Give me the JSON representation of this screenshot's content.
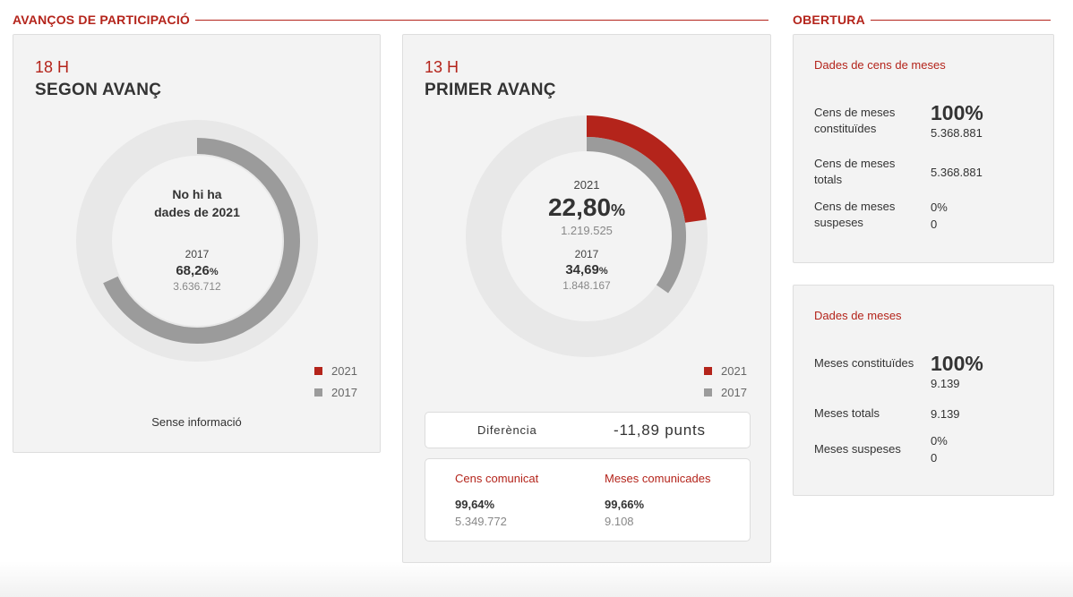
{
  "sections": {
    "participation_title": "AVANÇOS DE PARTICIPACIÓ",
    "opening_title": "OBERTURA"
  },
  "second": {
    "hour": "18 H",
    "title": "SEGON AVANÇ",
    "no_data_line1": "No hi ha",
    "no_data_line2": "dades de 2021",
    "prev_year": "2017",
    "prev_pct": "68,26",
    "prev_pct_unit": "%",
    "prev_count": "3.636.712",
    "prev_fraction": 0.6826,
    "legend_2021": "2021",
    "legend_2017": "2017",
    "no_info": "Sense informació"
  },
  "first": {
    "hour": "13 H",
    "title": "PRIMER AVANÇ",
    "year": "2021",
    "pct": "22,80",
    "pct_unit": "%",
    "count": "1.219.525",
    "fraction": 0.228,
    "prev_year": "2017",
    "prev_pct": "34,69",
    "prev_pct_unit": "%",
    "prev_count": "1.848.167",
    "prev_fraction": 0.3469,
    "legend_2021": "2021",
    "legend_2017": "2017",
    "diff_label": "Diferència",
    "diff_value": "-11,89 punts",
    "cens_title": "Cens comunicat",
    "cens_pct": "99,64%",
    "cens_value": "5.349.772",
    "meses_title": "Meses comunicades",
    "meses_pct": "99,66%",
    "meses_value": "9.108"
  },
  "opening_census": {
    "subtitle": "Dades de cens de meses",
    "row1_label": "Cens de meses constituïdes",
    "row1_pct": "100%",
    "row1_value": "5.368.881",
    "row2_label": "Cens de meses totals",
    "row2_value": "5.368.881",
    "row3_label": "Cens de meses suspeses",
    "row3_pct": "0%",
    "row3_value": "0"
  },
  "opening_tables": {
    "subtitle": "Dades de meses",
    "row1_label": "Meses constituïdes",
    "row1_pct": "100%",
    "row1_value": "9.139",
    "row2_label": "Meses totals",
    "row2_value": "9.139",
    "row3_label": "Meses suspeses",
    "row3_pct": "0%",
    "row3_value": "0"
  },
  "colors": {
    "accent": "#b4241b",
    "series_2017": "#9b9b9b",
    "track": "#e8e8e8"
  }
}
